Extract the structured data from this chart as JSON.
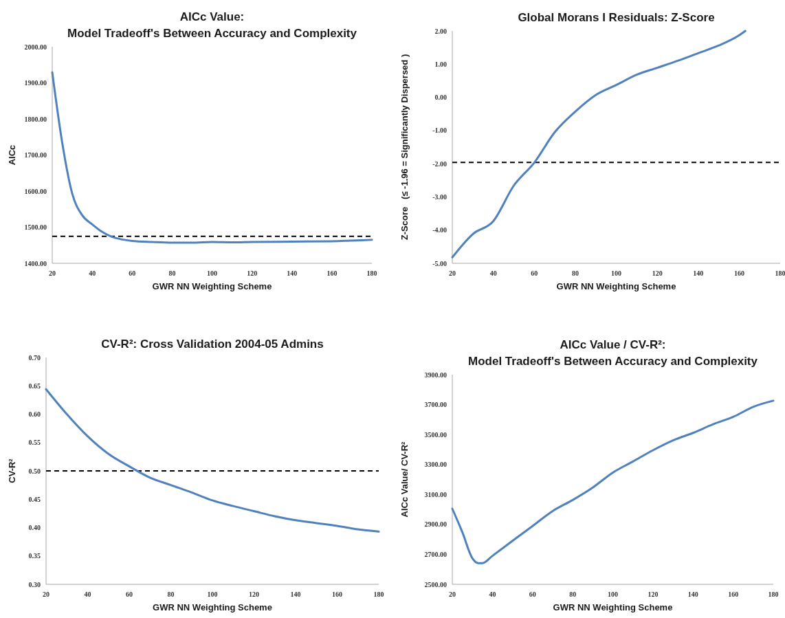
{
  "chart_data": [
    {
      "type": "line",
      "title": "AICc Value:\nModel Tradeoff's Between Accuracy and Complexity",
      "xlabel": "GWR NN Weighting Scheme",
      "ylabel": "AICc",
      "x": [
        20,
        25,
        30,
        35,
        40,
        45,
        50,
        55,
        60,
        70,
        80,
        90,
        100,
        110,
        120,
        140,
        160,
        170,
        180
      ],
      "series": [
        {
          "color": "#4f81bd",
          "values": [
            1929,
            1734,
            1593,
            1533,
            1508,
            1487,
            1473,
            1466,
            1462,
            1459,
            1457,
            1457,
            1459,
            1458,
            1459,
            1460,
            1461,
            1463,
            1465
          ]
        }
      ],
      "xlim": [
        20,
        180
      ],
      "xticks": [
        20,
        40,
        60,
        80,
        100,
        120,
        140,
        160,
        180
      ],
      "ylim": [
        1400,
        2000
      ],
      "yticks": [
        {
          "value": 1400,
          "label": "1400.00"
        },
        {
          "value": 1500,
          "label": "1500.00"
        },
        {
          "value": 1600,
          "label": "1600.00"
        },
        {
          "value": 1700,
          "label": "1700.00"
        },
        {
          "value": 1800,
          "label": "1800.00"
        },
        {
          "value": 1900,
          "label": "1900.00"
        },
        {
          "value": 2000,
          "label": "2000.00"
        }
      ],
      "ref_lines": [
        {
          "axis": "y",
          "value": 1475,
          "color": "#000000",
          "line_style": "dashed"
        }
      ],
      "grid": false
    },
    {
      "type": "line",
      "title": "Global Morans I Residuals: Z-Score",
      "xlabel": "GWR NN Weighting Scheme",
      "ylabel": "Z-Score   (≤ -1.96 = Significantly Dispersed )",
      "x": [
        20,
        30,
        40,
        50,
        60,
        70,
        80,
        90,
        100,
        110,
        120,
        130,
        140,
        150,
        160,
        163
      ],
      "series": [
        {
          "color": "#4f81bd",
          "values": [
            -4.82,
            -4.12,
            -3.73,
            -2.66,
            -1.97,
            -1.05,
            -0.43,
            0.07,
            0.37,
            0.68,
            0.89,
            1.1,
            1.33,
            1.56,
            1.87,
            2.0
          ]
        }
      ],
      "xlim": [
        20,
        180
      ],
      "xticks": [
        20,
        40,
        60,
        80,
        100,
        120,
        140,
        160,
        180
      ],
      "ylim": [
        -5,
        2
      ],
      "yticks": [
        {
          "value": -5,
          "label": "-5.00"
        },
        {
          "value": -4,
          "label": "-4.00"
        },
        {
          "value": -3,
          "label": "-3.00"
        },
        {
          "value": -2,
          "label": "-2.00"
        },
        {
          "value": -1,
          "label": "-1.00"
        },
        {
          "value": 0,
          "label": "0.00"
        },
        {
          "value": 1,
          "label": "1.00"
        },
        {
          "value": 2,
          "label": "2.00"
        }
      ],
      "ref_lines": [
        {
          "axis": "y",
          "value": -1.96,
          "color": "#000000",
          "line_style": "dashed"
        }
      ],
      "grid": false
    },
    {
      "type": "line",
      "title": "CV-R²: Cross Validation 2004-05 Admins",
      "xlabel": "GWR NN Weighting Scheme",
      "ylabel": "CV-R²",
      "x": [
        20,
        30,
        40,
        50,
        60,
        70,
        80,
        90,
        100,
        110,
        120,
        130,
        140,
        150,
        160,
        170,
        180
      ],
      "series": [
        {
          "color": "#4f81bd",
          "values": [
            0.644,
            0.6,
            0.561,
            0.53,
            0.508,
            0.488,
            0.475,
            0.462,
            0.448,
            0.438,
            0.429,
            0.42,
            0.413,
            0.408,
            0.403,
            0.397,
            0.393
          ]
        }
      ],
      "xlim": [
        20,
        180
      ],
      "xticks": [
        20,
        40,
        60,
        80,
        100,
        120,
        140,
        160,
        180
      ],
      "ylim": [
        0.3,
        0.7
      ],
      "yticks": [
        {
          "value": 0.3,
          "label": "0.30"
        },
        {
          "value": 0.35,
          "label": "0.35"
        },
        {
          "value": 0.4,
          "label": "0.40"
        },
        {
          "value": 0.45,
          "label": "0.45"
        },
        {
          "value": 0.5,
          "label": "0.50"
        },
        {
          "value": 0.55,
          "label": "0.55"
        },
        {
          "value": 0.6,
          "label": "0.60"
        },
        {
          "value": 0.65,
          "label": "0.65"
        },
        {
          "value": 0.7,
          "label": "0.70"
        }
      ],
      "ref_lines": [
        {
          "axis": "y",
          "value": 0.5,
          "color": "#000000",
          "line_style": "dashed"
        }
      ],
      "grid": false
    },
    {
      "type": "line",
      "title": "AICc Value / CV-R²:\nModel Tradeoff's Between Accuracy and Complexity",
      "xlabel": "GWR NN Weighting Scheme",
      "ylabel": "AICc Value/ CV-R²",
      "x": [
        20,
        25,
        30,
        33,
        35,
        40,
        50,
        60,
        70,
        80,
        90,
        100,
        110,
        120,
        130,
        140,
        150,
        160,
        170,
        180
      ],
      "series": [
        {
          "color": "#4f81bd",
          "values": [
            3005,
            2848,
            2674,
            2641,
            2641,
            2690,
            2790,
            2889,
            2989,
            3063,
            3146,
            3246,
            3320,
            3395,
            3461,
            3511,
            3569,
            3618,
            3685,
            3726
          ]
        }
      ],
      "xlim": [
        20,
        180
      ],
      "xticks": [
        20,
        40,
        60,
        80,
        100,
        120,
        140,
        160,
        180
      ],
      "ylim": [
        2500,
        3900
      ],
      "yticks": [
        {
          "value": 2500,
          "label": "2500.00"
        },
        {
          "value": 2700,
          "label": "2700.00"
        },
        {
          "value": 2900,
          "label": "2900.00"
        },
        {
          "value": 3100,
          "label": "3100.00"
        },
        {
          "value": 3300,
          "label": "3300.00"
        },
        {
          "value": 3500,
          "label": "3500.00"
        },
        {
          "value": 3700,
          "label": "3700.00"
        },
        {
          "value": 3900,
          "label": "3900.00"
        }
      ],
      "grid": false
    }
  ]
}
